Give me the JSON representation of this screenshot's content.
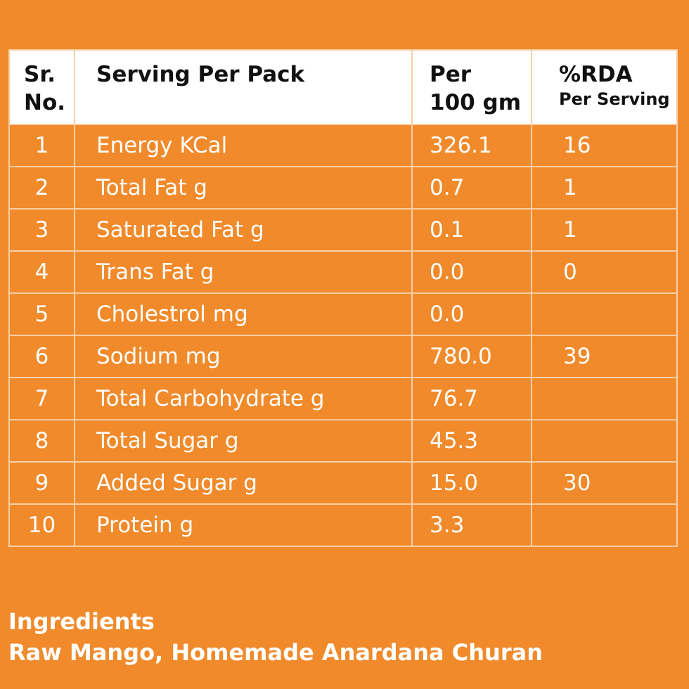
{
  "table": {
    "header": [
      [
        "Sr.",
        "No."
      ],
      [
        "Serving Per Pack"
      ],
      [
        "Per",
        "100 gm"
      ],
      [
        "%RDA",
        "Per Serving"
      ]
    ],
    "rows": [
      [
        "1",
        "Energy KCal",
        "326.1",
        "16"
      ],
      [
        "2",
        "Total Fat g",
        "0.7",
        "1"
      ],
      [
        "3",
        "Saturated Fat g",
        "0.1",
        "1"
      ],
      [
        "4",
        "Trans Fat g",
        "0.0",
        "0"
      ],
      [
        "5",
        "Cholestrol mg",
        "0.0",
        null
      ],
      [
        "6",
        "Sodium mg",
        "780.0",
        "39"
      ],
      [
        "7",
        "Total Carbohydrate g",
        "76.7",
        null
      ],
      [
        "8",
        "Total Sugar g",
        "45.3",
        null
      ],
      [
        "9",
        "Added Sugar g",
        "15.0",
        "30"
      ],
      [
        "10",
        "Protein g",
        "3.3",
        null
      ]
    ]
  },
  "ingredients": {
    "title": "Ingredients",
    "text": "Raw Mango, Homemade Anardana Churan"
  }
}
